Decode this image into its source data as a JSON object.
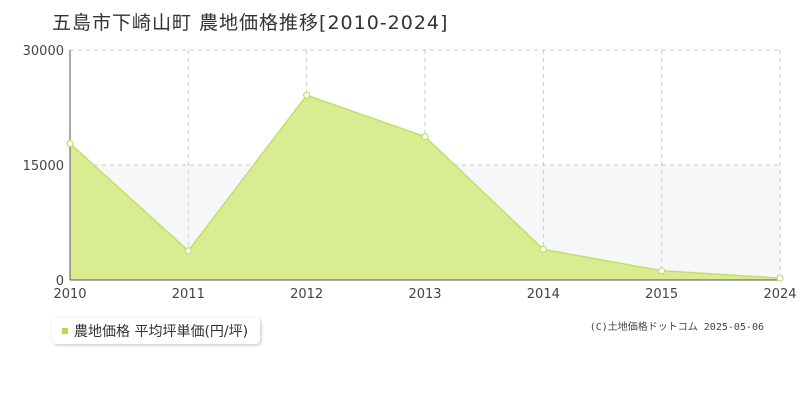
{
  "title": "五島市下崎山町 農地価格推移[2010-2024]",
  "legend": {
    "label": "農地価格 平均坪単価(円/坪)"
  },
  "copyright": "(C)土地価格ドットコム 2025-05-06",
  "colors": {
    "area_fill": "#d9ec92",
    "line": "#bfe06a",
    "marker_fill": "#ffffff",
    "marker_stroke": "#bfe06a",
    "grid": "#c8c8c8",
    "band": "#f7f7f9",
    "legend_swatch": "#b5d94a"
  },
  "chart_data": {
    "type": "area",
    "categories": [
      "2010",
      "2011",
      "2012",
      "2013",
      "2014",
      "2015",
      "2024"
    ],
    "series": [
      {
        "name": "農地価格 平均坪単価(円/坪)",
        "values": [
          17800,
          3800,
          24100,
          18700,
          4000,
          1200,
          250
        ]
      }
    ],
    "ylim": [
      0,
      30000
    ],
    "yticks": [
      "0",
      "15000",
      "30000"
    ],
    "grid": true,
    "legend_position": "bottom-left"
  }
}
